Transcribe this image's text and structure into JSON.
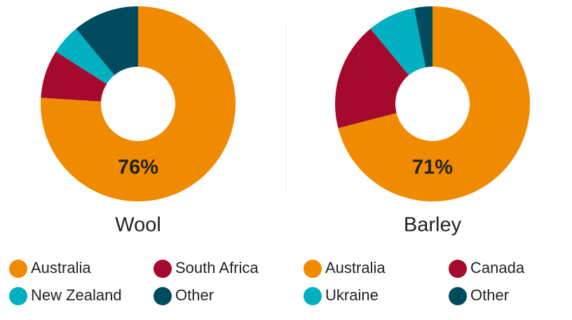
{
  "chart_data": [
    {
      "type": "pie",
      "title": "Wool",
      "categories": [
        "Australia",
        "South Africa",
        "New Zealand",
        "Other"
      ],
      "values": [
        76,
        8,
        5,
        11
      ],
      "value_labels": [
        "76%",
        null,
        null,
        null
      ],
      "colors": [
        "#f08a00",
        "#a50a2e",
        "#00b0c0",
        "#004c5e"
      ],
      "donut": true
    },
    {
      "type": "pie",
      "title": "Barley",
      "categories": [
        "Australia",
        "Canada",
        "Ukraine",
        "Other"
      ],
      "values": [
        71,
        18,
        8,
        3
      ],
      "value_labels": [
        "71%",
        null,
        null,
        null
      ],
      "colors": [
        "#f08a00",
        "#a50a2e",
        "#00b0c0",
        "#004c5e"
      ],
      "donut": true
    }
  ]
}
